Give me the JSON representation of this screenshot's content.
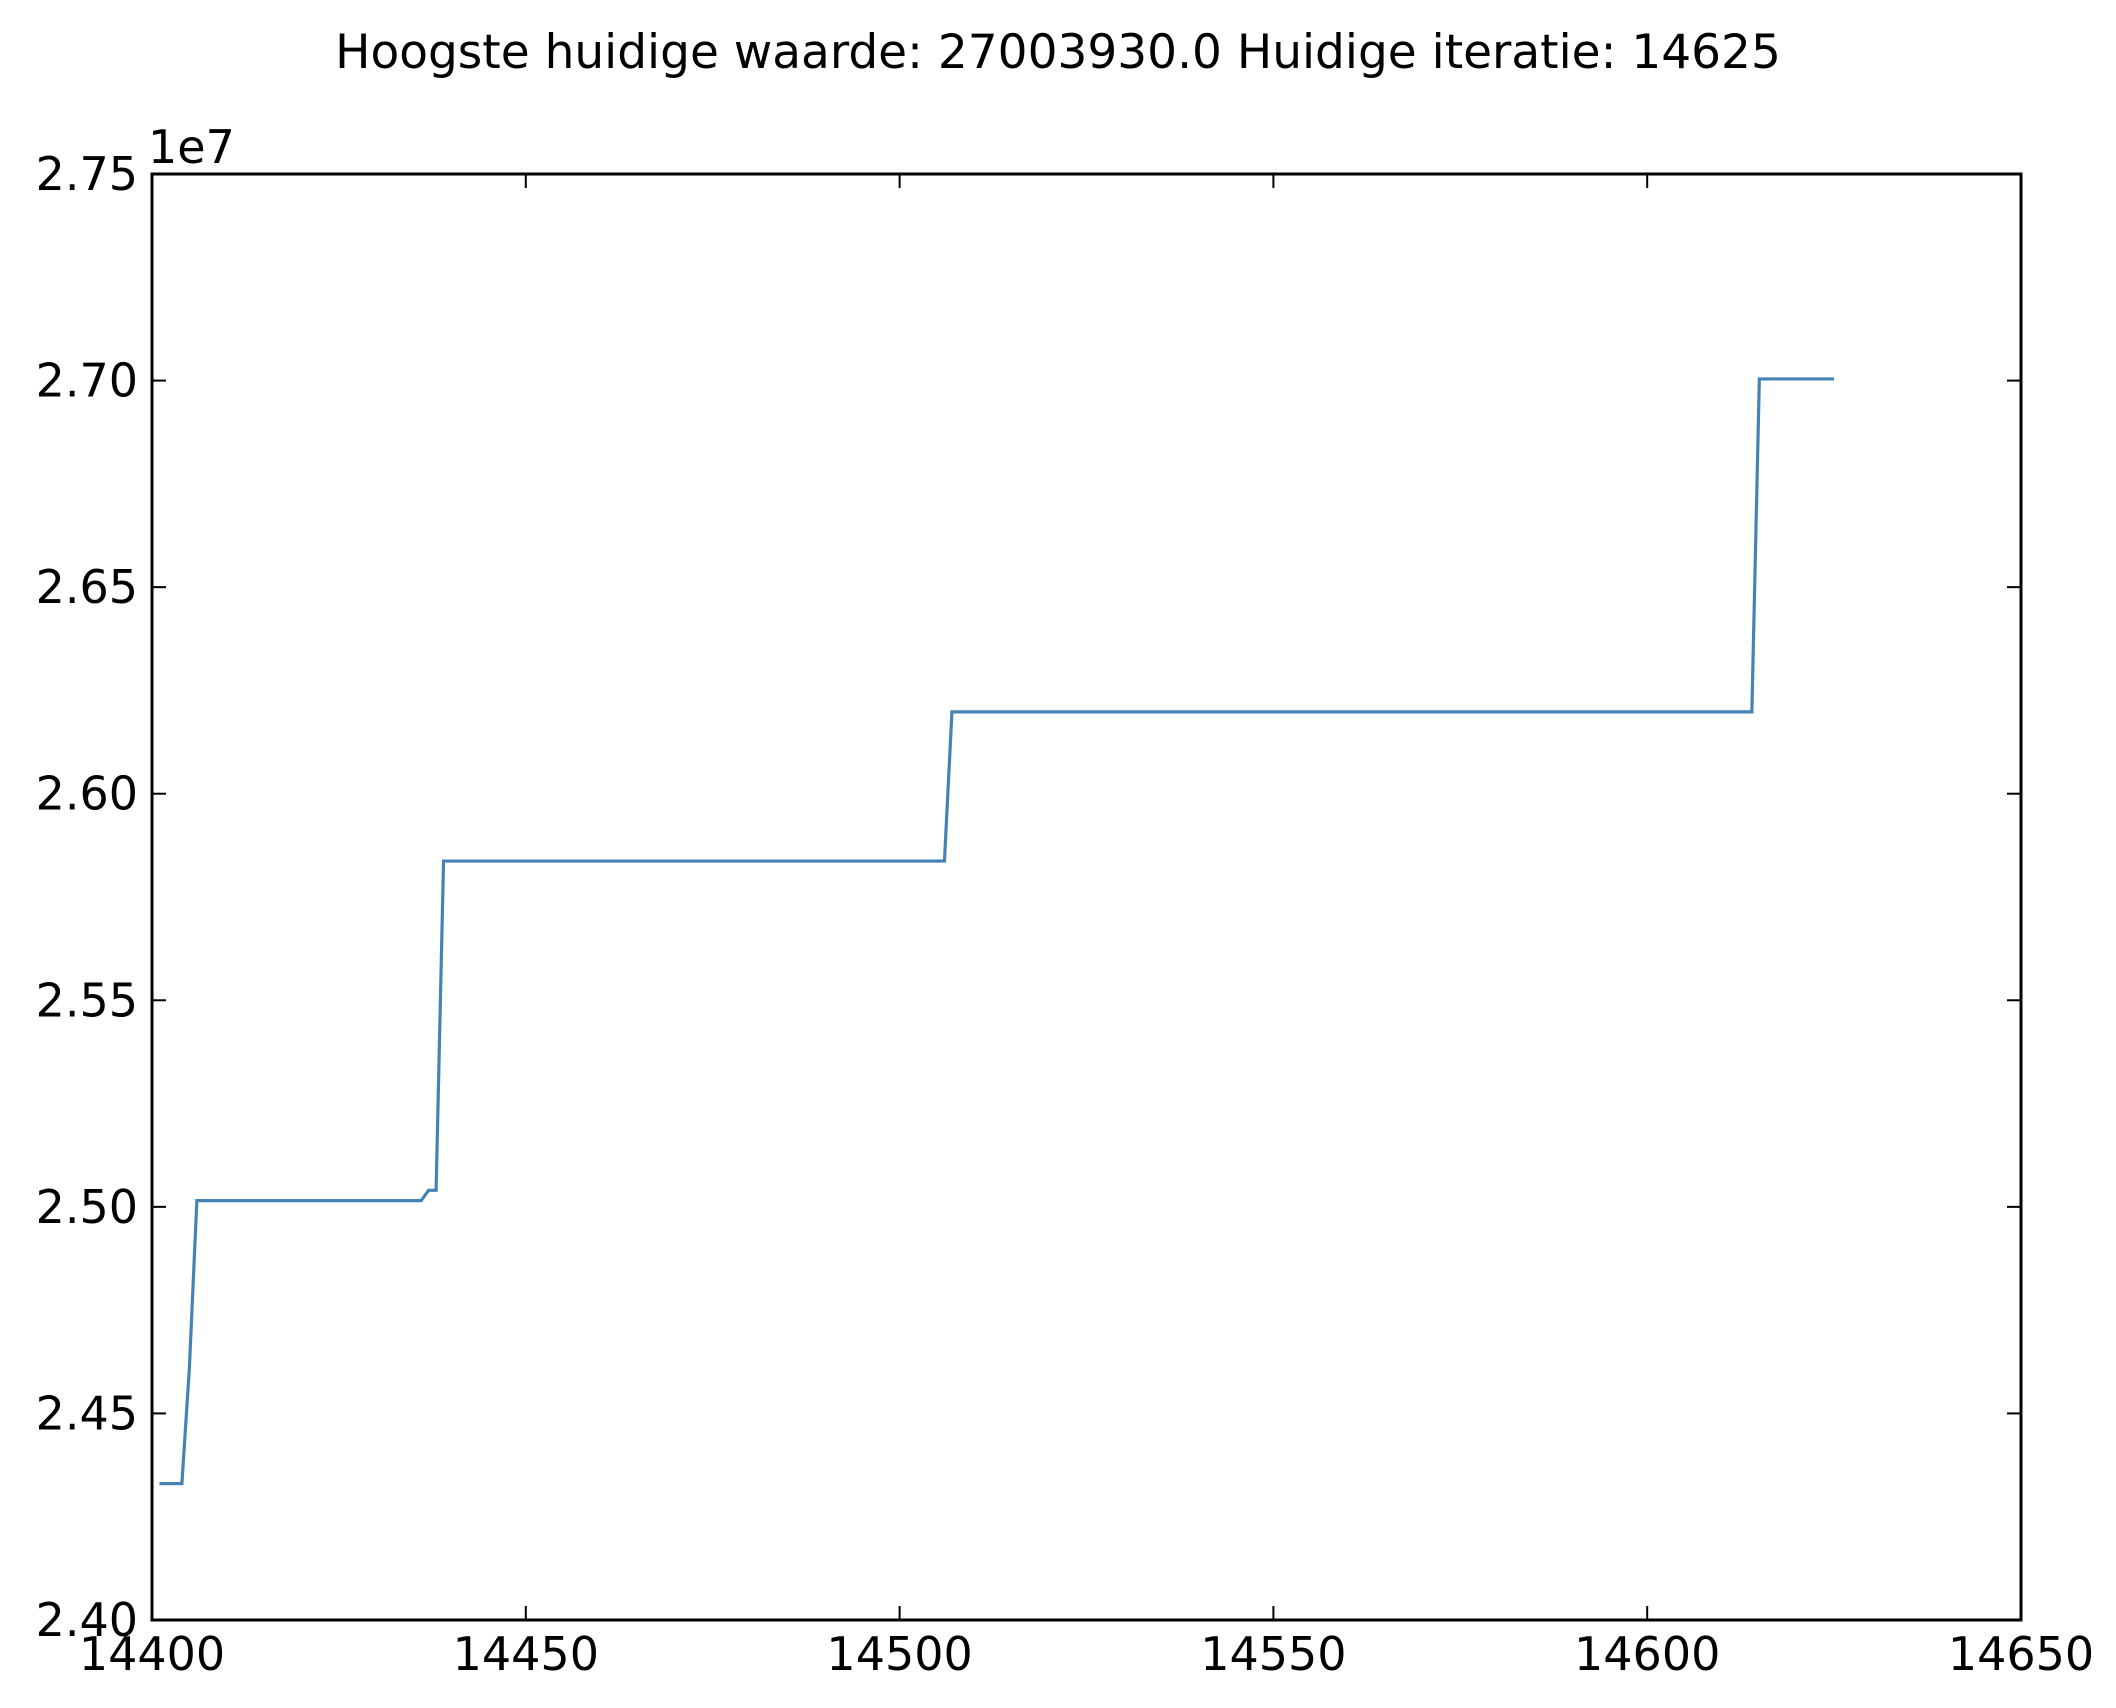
{
  "chart_data": {
    "type": "line",
    "title": "Hoogste huidige waarde: 27003930.0 Huidige iteratie: 14625",
    "xlabel": "",
    "ylabel": "",
    "xlim": [
      14400,
      14650
    ],
    "ylim": [
      24000000,
      27500000
    ],
    "y_offset_label": "1e7",
    "x_ticks": [
      14400,
      14450,
      14500,
      14550,
      14600,
      14650
    ],
    "x_tick_labels": [
      "14400",
      "14450",
      "14500",
      "14550",
      "14600",
      "14650"
    ],
    "y_ticks": [
      24000000,
      24500000,
      25000000,
      25500000,
      26000000,
      26500000,
      27000000,
      27500000
    ],
    "y_tick_labels": [
      "2.40",
      "2.45",
      "2.50",
      "2.55",
      "2.60",
      "2.65",
      "2.70",
      "2.75"
    ],
    "grid": false,
    "line_color": "#4682b4",
    "series": [
      {
        "x": [
          14401,
          14404,
          14405,
          14406,
          14436,
          14437,
          14438,
          14439,
          14506,
          14507,
          14614,
          14615,
          14625
        ],
        "y": [
          24330000,
          24330000,
          24610000,
          25015000,
          25015000,
          25040000,
          25040000,
          25837000,
          25837000,
          26198000,
          26198000,
          27003930,
          27003930
        ]
      }
    ]
  }
}
